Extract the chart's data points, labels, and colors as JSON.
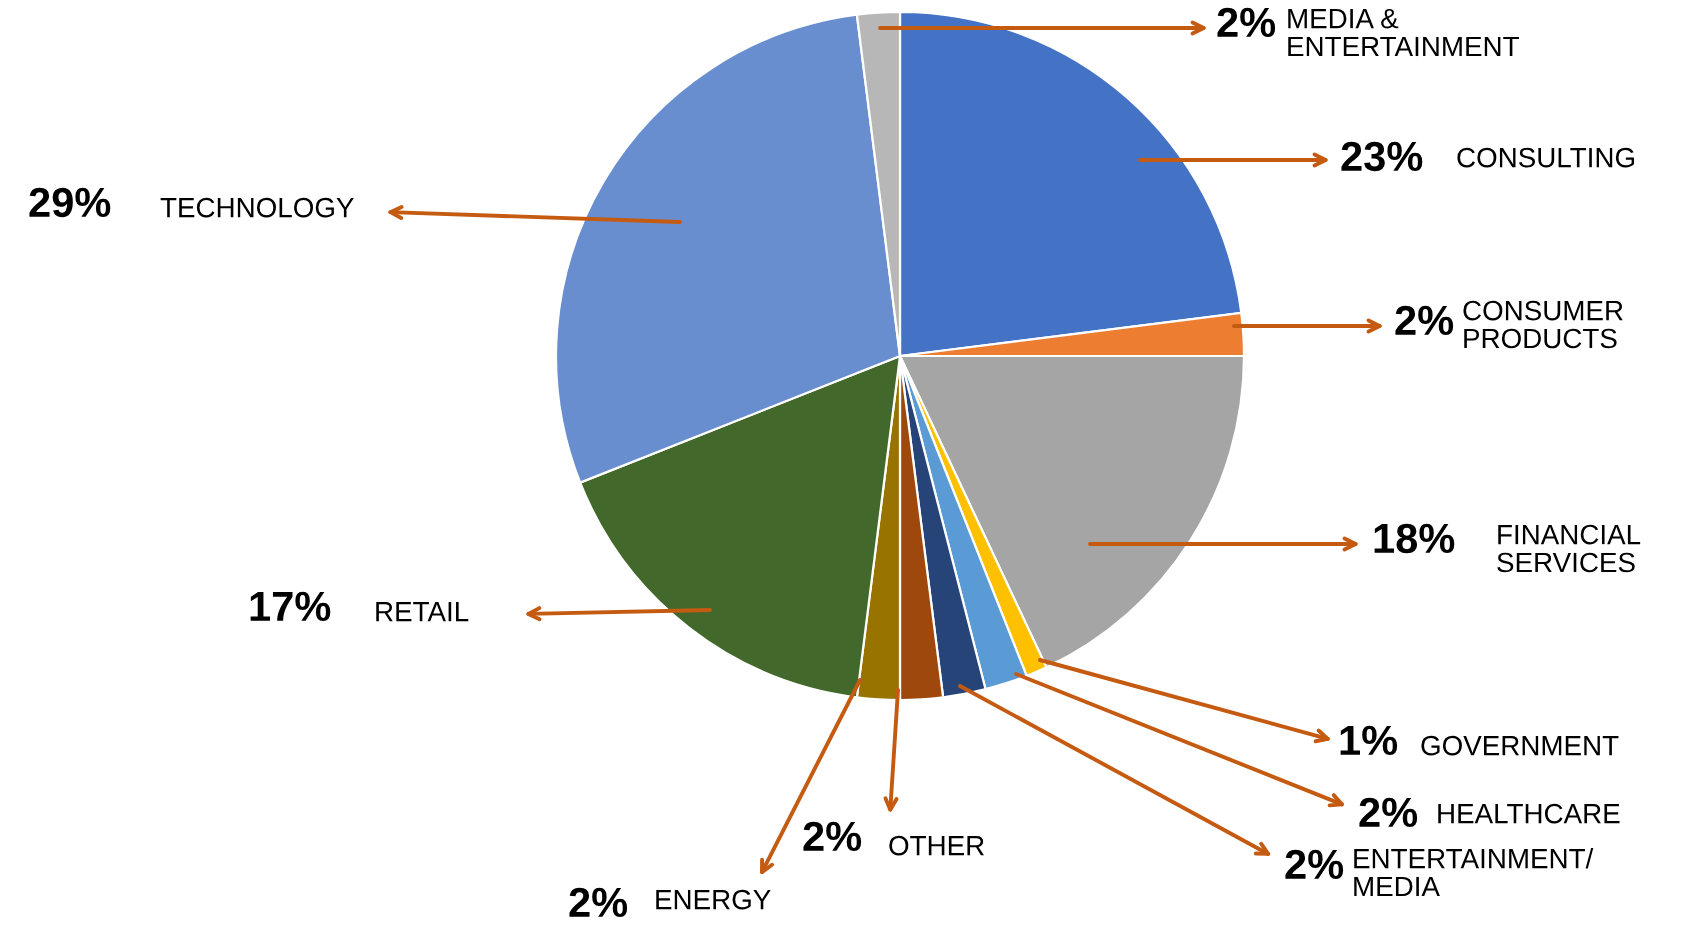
{
  "chart_data": {
    "type": "pie",
    "categories": [
      "CONSULTING",
      "CONSUMER\nPRODUCTS",
      "FINANCIAL\nSERVICES",
      "GOVERNMENT",
      "HEALTHCARE",
      "ENTERTAINMENT/\nMEDIA",
      "OTHER",
      "ENERGY",
      "RETAIL",
      "TECHNOLOGY",
      "MEDIA &\nENTERTAINMENT"
    ],
    "values": [
      23,
      2,
      18,
      1,
      2,
      2,
      2,
      2,
      17,
      29,
      2
    ],
    "value_labels": [
      "23%",
      "2%",
      "18%",
      "1%",
      "2%",
      "2%",
      "2%",
      "2%",
      "17%",
      "29%",
      "2%"
    ],
    "colors": [
      "#4472c4",
      "#ed7d31",
      "#a5a5a5",
      "#ffc000",
      "#5b9bd5",
      "#264478",
      "#9e480e",
      "#997300",
      "#43682b",
      "#698ed0",
      "#b7b7b7"
    ]
  }
}
